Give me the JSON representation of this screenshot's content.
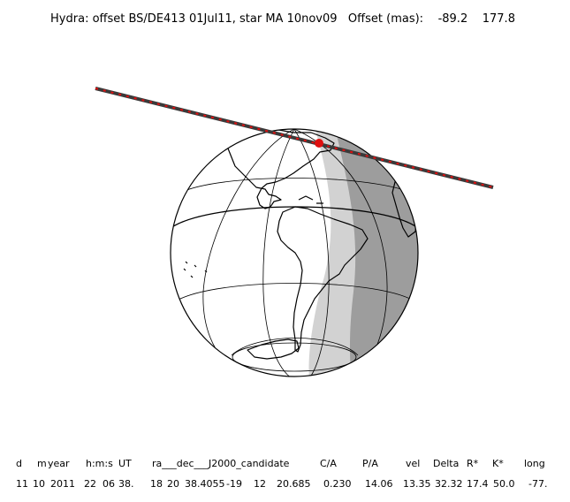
{
  "title": "Hydra: offset BS/DE413 01Jul11, star MA 10nov09   Offset (mas):    -89.2    177.8",
  "colors": {
    "night": "#9d9d9d",
    "twilight": "#d2d2d2",
    "day": "#ffffff",
    "track_dark": "#3a3a3a",
    "track_red": "#e01010",
    "outline": "#000000"
  },
  "table": {
    "headers": [
      "d",
      "m",
      "year",
      "h:m:s",
      "UT",
      "ra___dec___J2000_candidate",
      "C/A",
      "P/A",
      "vel",
      "Delta",
      "R*",
      "K*",
      "long"
    ],
    "values": [
      "11",
      "10",
      "2011",
      "22",
      "06",
      "38.",
      "18",
      "20",
      "38.4055",
      "-19",
      "12",
      "20.685",
      "0.230",
      "14.06",
      "13.35",
      "32.32",
      "17.4",
      "50.0",
      "-77."
    ]
  }
}
